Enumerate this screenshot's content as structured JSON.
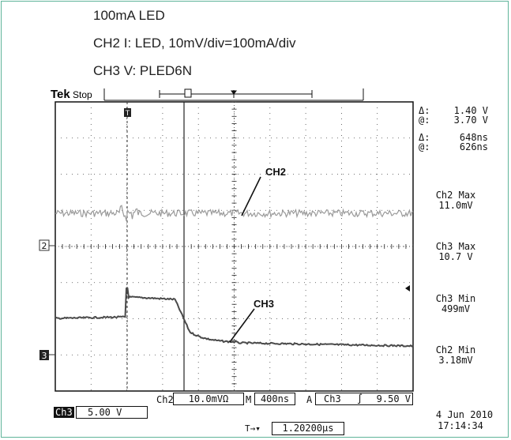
{
  "captions": {
    "line1": "100mA LED",
    "line2": "CH2 I: LED, 10mV/div=100mA/div",
    "line3": "CH3 V: PLED6N"
  },
  "scope": {
    "brand": "Tek",
    "state": "Stop",
    "trigger_marker": "T",
    "ch2_marker": "2",
    "ch3_marker": "3",
    "labels": {
      "ch2": "CH2",
      "ch3": "CH3"
    }
  },
  "cursors": {
    "v_delta_symbol": "Δ:",
    "v_delta_value": "1.40 V",
    "v_at_symbol": "@:",
    "v_at_value": "3.70 V",
    "t_delta_symbol": "Δ:",
    "t_delta_value": "648ns",
    "t_at_symbol": "@:",
    "t_at_value": "626ns"
  },
  "measurements": [
    {
      "label": "Ch2 Max",
      "value": "11.0mV"
    },
    {
      "label": "Ch3 Max",
      "value": "10.7 V"
    },
    {
      "label": "Ch3 Min",
      "value": "499mV"
    },
    {
      "label": "Ch2 Min",
      "value": "3.18mV"
    }
  ],
  "bottom": {
    "ch2_label": "Ch2",
    "ch2_scale": "10.0mVΩ",
    "m_label": "M",
    "timebase": "400ns",
    "a_label": "A",
    "trig_channel": "Ch3",
    "trig_slope": "∫",
    "trig_level": "9.50 V",
    "ch3_tag": "Ch3",
    "ch3_scale": "5.00 V",
    "trig_pos_icon": "T→▾",
    "trig_pos": "1.20200µs",
    "date": "4 Jun  2010",
    "time": "17:14:34"
  },
  "colors": {
    "ch2_trace": "#9a9a9a",
    "ch3_trace": "#505050",
    "grid": "#222222",
    "frame": "#5fb49a"
  }
}
